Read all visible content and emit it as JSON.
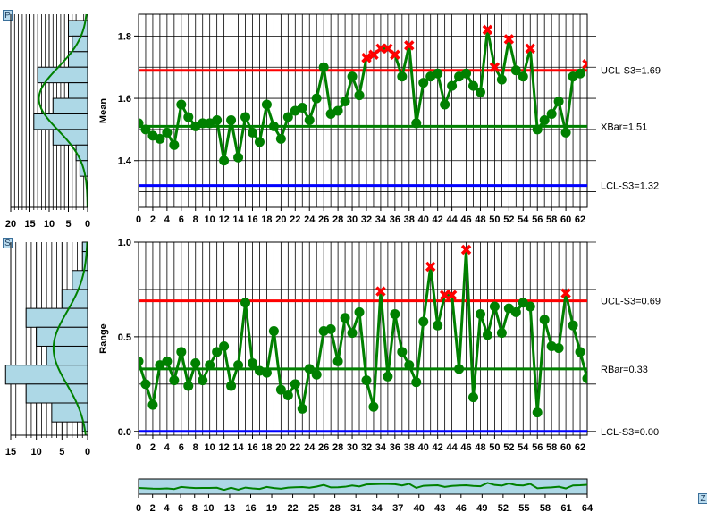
{
  "buttons": {
    "top": "P",
    "bottom": "S",
    "zoom": "Z"
  },
  "chart_data": [
    {
      "type": "line",
      "chart": "xbar",
      "ylabel": "Mean",
      "ylim": [
        1.25,
        1.87
      ],
      "yticks": [
        1.4,
        1.6,
        1.8
      ],
      "ytick_labels": [
        "1.4",
        "1.6",
        "1.8"
      ],
      "xlim": [
        0,
        63
      ],
      "xticks_labels": [
        "0",
        "2",
        "4",
        "6",
        "8",
        "10",
        "12",
        "14",
        "16",
        "18",
        "20",
        "22",
        "24",
        "26",
        "28",
        "30",
        "32",
        "34",
        "36",
        "38",
        "40",
        "42",
        "44",
        "46",
        "48",
        "50",
        "52",
        "54",
        "56",
        "58",
        "60",
        "62"
      ],
      "values": [
        1.52,
        1.5,
        1.48,
        1.47,
        1.49,
        1.45,
        1.58,
        1.54,
        1.51,
        1.52,
        1.52,
        1.53,
        1.4,
        1.53,
        1.41,
        1.54,
        1.49,
        1.46,
        1.58,
        1.51,
        1.47,
        1.54,
        1.56,
        1.57,
        1.53,
        1.6,
        1.7,
        1.55,
        1.56,
        1.59,
        1.67,
        1.61,
        1.73,
        1.74,
        1.76,
        1.76,
        1.74,
        1.67,
        1.77,
        1.52,
        1.65,
        1.67,
        1.68,
        1.58,
        1.64,
        1.67,
        1.68,
        1.64,
        1.62,
        1.82,
        1.7,
        1.66,
        1.79,
        1.69,
        1.67,
        1.76,
        1.5,
        1.53,
        1.55,
        1.59,
        1.49,
        1.67,
        1.68,
        1.71
      ],
      "out_of_control": [
        32,
        33,
        34,
        35,
        36,
        38,
        49,
        50,
        52,
        55,
        63
      ],
      "limits": [
        {
          "name": "UCL-S3",
          "value": 1.69,
          "label": "UCL-S3=1.69",
          "color": "#ff0000"
        },
        {
          "name": "XBar",
          "value": 1.51,
          "label": "XBar=1.51",
          "color": "#008000"
        },
        {
          "name": "LCL-S3",
          "value": 1.32,
          "label": "LCL-S3=1.32",
          "color": "#0000ff"
        }
      ],
      "histogram": {
        "xticks_labels": [
          "20",
          "15",
          "10",
          "5",
          "0"
        ],
        "xlim": [
          20,
          0
        ],
        "bins": [
          {
            "from": 1.8,
            "to": 1.85,
            "count": 5
          },
          {
            "from": 1.75,
            "to": 1.8,
            "count": 4
          },
          {
            "from": 1.7,
            "to": 1.75,
            "count": 5
          },
          {
            "from": 1.65,
            "to": 1.7,
            "count": 13
          },
          {
            "from": 1.6,
            "to": 1.65,
            "count": 5
          },
          {
            "from": 1.55,
            "to": 1.6,
            "count": 9
          },
          {
            "from": 1.5,
            "to": 1.55,
            "count": 14
          },
          {
            "from": 1.45,
            "to": 1.5,
            "count": 9
          },
          {
            "from": 1.4,
            "to": 1.45,
            "count": 3
          },
          {
            "from": 1.35,
            "to": 1.4,
            "count": 2
          }
        ]
      }
    },
    {
      "type": "line",
      "chart": "range",
      "ylabel": "Range",
      "ylim": [
        -0.02,
        1.0
      ],
      "yticks": [
        0.0,
        0.5,
        1.0
      ],
      "ytick_labels": [
        "0.0",
        "0.5",
        "1.0"
      ],
      "xlim": [
        0,
        63
      ],
      "xticks_labels": [
        "0",
        "2",
        "4",
        "6",
        "8",
        "10",
        "12",
        "14",
        "16",
        "18",
        "20",
        "22",
        "24",
        "26",
        "28",
        "30",
        "32",
        "34",
        "36",
        "38",
        "40",
        "42",
        "44",
        "46",
        "48",
        "50",
        "52",
        "54",
        "56",
        "58",
        "60",
        "62"
      ],
      "values": [
        0.37,
        0.25,
        0.14,
        0.35,
        0.37,
        0.27,
        0.42,
        0.24,
        0.36,
        0.27,
        0.35,
        0.42,
        0.45,
        0.24,
        0.35,
        0.68,
        0.36,
        0.32,
        0.31,
        0.53,
        0.22,
        0.19,
        0.25,
        0.12,
        0.33,
        0.3,
        0.53,
        0.54,
        0.37,
        0.6,
        0.52,
        0.63,
        0.27,
        0.13,
        0.74,
        0.29,
        0.62,
        0.42,
        0.35,
        0.26,
        0.58,
        0.87,
        0.56,
        0.72,
        0.72,
        0.33,
        0.96,
        0.18,
        0.62,
        0.51,
        0.66,
        0.52,
        0.65,
        0.63,
        0.68,
        0.66,
        0.1,
        0.59,
        0.45,
        0.44,
        0.73,
        0.56,
        0.42,
        0.28
      ],
      "out_of_control": [
        34,
        41,
        43,
        44,
        46,
        60
      ],
      "limits": [
        {
          "name": "UCL-S3",
          "value": 0.69,
          "label": "UCL-S3=0.69",
          "color": "#ff0000"
        },
        {
          "name": "RBar",
          "value": 0.33,
          "label": "RBar=0.33",
          "color": "#008000"
        },
        {
          "name": "LCL-S3",
          "value": 0.0,
          "label": "LCL-S3=0.00",
          "color": "#0000ff"
        }
      ],
      "histogram": {
        "xticks_labels": [
          "15",
          "10",
          "5",
          "0"
        ],
        "xlim": [
          15,
          0
        ],
        "bins": [
          {
            "from": 0.95,
            "to": 1.0,
            "count": 1
          },
          {
            "from": 0.85,
            "to": 0.95,
            "count": 1
          },
          {
            "from": 0.75,
            "to": 0.85,
            "count": 3
          },
          {
            "from": 0.65,
            "to": 0.75,
            "count": 5
          },
          {
            "from": 0.55,
            "to": 0.65,
            "count": 12
          },
          {
            "from": 0.45,
            "to": 0.55,
            "count": 10
          },
          {
            "from": 0.35,
            "to": 0.45,
            "count": 8
          },
          {
            "from": 0.25,
            "to": 0.35,
            "count": 16
          },
          {
            "from": 0.15,
            "to": 0.25,
            "count": 12
          },
          {
            "from": 0.05,
            "to": 0.15,
            "count": 7
          },
          {
            "from": 0.0,
            "to": 0.05,
            "count": 1
          }
        ]
      }
    },
    {
      "type": "area",
      "chart": "scrollbar-overview",
      "xticks_labels": [
        "0",
        "2",
        "4",
        "6",
        "8",
        "10",
        "13",
        "16",
        "19",
        "22",
        "25",
        "28",
        "31",
        "34",
        "37",
        "40",
        "43",
        "46",
        "49",
        "52",
        "55",
        "58",
        "61",
        "64"
      ],
      "xlim": [
        0,
        64
      ]
    }
  ],
  "colors": {
    "marker": "#008000",
    "line": "#008000",
    "alarm": "#ff0000",
    "histogram_fill": "#add8e6",
    "normal_curve": "#008000"
  }
}
